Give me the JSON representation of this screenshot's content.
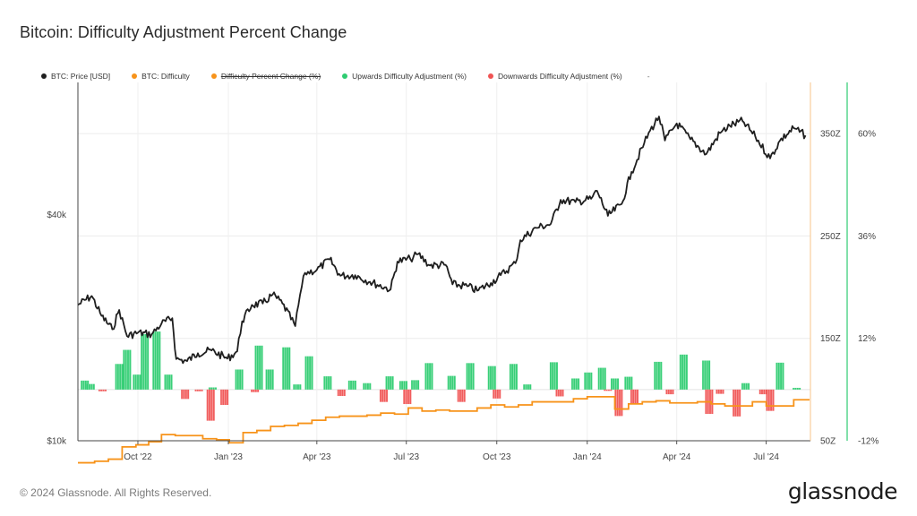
{
  "header": {
    "title": "Bitcoin: Difficulty Adjustment Percent Change"
  },
  "legend": {
    "items": [
      {
        "label": "BTC: Price [USD]",
        "color": "#1f1f1f",
        "struck": false
      },
      {
        "label": "BTC: Difficulty",
        "color": "#f7931a",
        "struck": false
      },
      {
        "label": "Difficulty Percent Change (%)",
        "color": "#f7931a",
        "struck": true
      },
      {
        "label": "Upwards Difficulty Adjustment (%)",
        "color": "#2ecc71",
        "struck": false
      },
      {
        "label": "Downwards Difficulty Adjustment (%)",
        "color": "#f05454",
        "struck": false
      }
    ],
    "extra": "-"
  },
  "footer": {
    "copyright": "© 2024 Glassnode. All Rights Reserved.",
    "brand": "glassnode"
  },
  "chart_data": {
    "type": "line",
    "x_ticks": [
      "Oct '22",
      "Jan '23",
      "Apr '23",
      "Jul '23",
      "Oct '23",
      "Jan '24",
      "Apr '24",
      "Jul '24"
    ],
    "x_tick_dates": [
      "2022-10-01",
      "2023-01-01",
      "2023-04-01",
      "2023-07-01",
      "2023-10-01",
      "2024-01-01",
      "2024-04-01",
      "2024-07-01"
    ],
    "x_range": [
      "2022-08-01",
      "2024-08-15"
    ],
    "axes": {
      "price": {
        "scale": "log",
        "ticks": [
          "$10k",
          "$40k"
        ],
        "tick_values": [
          10000,
          40000
        ],
        "range": [
          10000,
          90000
        ]
      },
      "difficulty": {
        "scale": "linear",
        "ticks": [
          "50Z",
          "150Z",
          "250Z",
          "350Z"
        ],
        "tick_values": [
          50,
          150,
          250,
          350
        ],
        "range": [
          50,
          400
        ]
      },
      "percent": {
        "scale": "linear",
        "ticks": [
          "-12%",
          "12%",
          "36%",
          "60%"
        ],
        "tick_values": [
          -12,
          12,
          36,
          60
        ],
        "range": [
          -12,
          72
        ]
      }
    },
    "series": [
      {
        "name": "BTC: Price [USD]",
        "color": "#1f1f1f",
        "axis": "price",
        "points": [
          [
            "2022-08-01",
            23000
          ],
          [
            "2022-08-15",
            24300
          ],
          [
            "2022-08-25",
            21500
          ],
          [
            "2022-09-05",
            19800
          ],
          [
            "2022-09-12",
            22300
          ],
          [
            "2022-09-20",
            19000
          ],
          [
            "2022-10-01",
            19400
          ],
          [
            "2022-10-15",
            19200
          ],
          [
            "2022-10-25",
            20500
          ],
          [
            "2022-11-05",
            21200
          ],
          [
            "2022-11-09",
            16500
          ],
          [
            "2022-11-20",
            16300
          ],
          [
            "2022-12-01",
            17100
          ],
          [
            "2022-12-15",
            17400
          ],
          [
            "2022-12-31",
            16550
          ],
          [
            "2023-01-10",
            17300
          ],
          [
            "2023-01-15",
            20800
          ],
          [
            "2023-01-25",
            23000
          ],
          [
            "2023-02-05",
            23200
          ],
          [
            "2023-02-15",
            24500
          ],
          [
            "2023-02-25",
            23200
          ],
          [
            "2023-03-10",
            20200
          ],
          [
            "2023-03-15",
            24500
          ],
          [
            "2023-03-20",
            28000
          ],
          [
            "2023-04-01",
            28500
          ],
          [
            "2023-04-14",
            30400
          ],
          [
            "2023-04-25",
            27500
          ],
          [
            "2023-05-10",
            27600
          ],
          [
            "2023-05-25",
            26500
          ],
          [
            "2023-06-15",
            25300
          ],
          [
            "2023-06-22",
            30000
          ],
          [
            "2023-07-05",
            30500
          ],
          [
            "2023-07-13",
            31400
          ],
          [
            "2023-07-25",
            29300
          ],
          [
            "2023-08-10",
            29400
          ],
          [
            "2023-08-17",
            26100
          ],
          [
            "2023-09-01",
            25800
          ],
          [
            "2023-09-11",
            25100
          ],
          [
            "2023-09-25",
            26300
          ],
          [
            "2023-10-05",
            27600
          ],
          [
            "2023-10-20",
            29700
          ],
          [
            "2023-10-25",
            34200
          ],
          [
            "2023-11-10",
            36900
          ],
          [
            "2023-11-25",
            37800
          ],
          [
            "2023-12-05",
            43800
          ],
          [
            "2023-12-20",
            43200
          ],
          [
            "2024-01-05",
            44100
          ],
          [
            "2024-01-11",
            46300
          ],
          [
            "2024-01-22",
            39700
          ],
          [
            "2024-02-05",
            42700
          ],
          [
            "2024-02-15",
            52000
          ],
          [
            "2024-02-28",
            62000
          ],
          [
            "2024-03-05",
            67000
          ],
          [
            "2024-03-14",
            73000
          ],
          [
            "2024-03-20",
            63000
          ],
          [
            "2024-04-01",
            70000
          ],
          [
            "2024-04-15",
            63500
          ],
          [
            "2024-05-01",
            58000
          ],
          [
            "2024-05-15",
            66000
          ],
          [
            "2024-05-25",
            69000
          ],
          [
            "2024-06-07",
            71000
          ],
          [
            "2024-06-20",
            64500
          ],
          [
            "2024-07-05",
            56500
          ],
          [
            "2024-07-15",
            63000
          ],
          [
            "2024-07-29",
            68000
          ],
          [
            "2024-08-10",
            65000
          ]
        ]
      },
      {
        "name": "BTC: Difficulty",
        "color": "#f7931a",
        "axis": "difficulty",
        "shape": "step",
        "points": [
          [
            "2022-08-01",
            28.5
          ],
          [
            "2022-08-18",
            30
          ],
          [
            "2022-09-01",
            32
          ],
          [
            "2022-09-15",
            44
          ],
          [
            "2022-09-29",
            46
          ],
          [
            "2022-10-12",
            49
          ],
          [
            "2022-10-25",
            56
          ],
          [
            "2022-11-08",
            55
          ],
          [
            "2022-11-22",
            55
          ],
          [
            "2022-12-06",
            52
          ],
          [
            "2022-12-20",
            51
          ],
          [
            "2023-01-02",
            48
          ],
          [
            "2023-01-16",
            58
          ],
          [
            "2023-01-30",
            60
          ],
          [
            "2023-02-13",
            64
          ],
          [
            "2023-02-27",
            65
          ],
          [
            "2023-03-13",
            67
          ],
          [
            "2023-03-27",
            70
          ],
          [
            "2023-04-10",
            73
          ],
          [
            "2023-04-24",
            74
          ],
          [
            "2023-05-08",
            74
          ],
          [
            "2023-05-22",
            75
          ],
          [
            "2023-06-05",
            77
          ],
          [
            "2023-06-19",
            76
          ],
          [
            "2023-07-03",
            82
          ],
          [
            "2023-07-17",
            79
          ],
          [
            "2023-07-31",
            80
          ],
          [
            "2023-08-14",
            79
          ],
          [
            "2023-08-28",
            79
          ],
          [
            "2023-09-11",
            82
          ],
          [
            "2023-09-25",
            85
          ],
          [
            "2023-10-09",
            83
          ],
          [
            "2023-10-23",
            85
          ],
          [
            "2023-11-06",
            88
          ],
          [
            "2023-11-20",
            88
          ],
          [
            "2023-12-04",
            88
          ],
          [
            "2023-12-18",
            91
          ],
          [
            "2024-01-01",
            93
          ],
          [
            "2024-01-15",
            93
          ],
          [
            "2024-01-29",
            81
          ],
          [
            "2024-02-12",
            86
          ],
          [
            "2024-02-26",
            88
          ],
          [
            "2024-03-11",
            89
          ],
          [
            "2024-03-25",
            87
          ],
          [
            "2024-04-08",
            87
          ],
          [
            "2024-04-22",
            88
          ],
          [
            "2024-05-06",
            86
          ],
          [
            "2024-05-20",
            84
          ],
          [
            "2024-06-03",
            84
          ],
          [
            "2024-06-17",
            88
          ],
          [
            "2024-07-01",
            84
          ],
          [
            "2024-07-15",
            84
          ],
          [
            "2024-07-29",
            90
          ]
        ]
      },
      {
        "name": "Upwards Difficulty Adjustment (%)",
        "color": "#2ecc71",
        "axis": "percent",
        "type": "bar",
        "points": [
          [
            "2022-08-08",
            2.1
          ],
          [
            "2022-08-14",
            1.3
          ],
          [
            "2022-09-12",
            6.0
          ],
          [
            "2022-09-20",
            9.3
          ],
          [
            "2022-09-30",
            3.5
          ],
          [
            "2022-10-08",
            13.0
          ],
          [
            "2022-10-20",
            13.6
          ],
          [
            "2022-11-01",
            3.5
          ],
          [
            "2022-12-16",
            0.5
          ],
          [
            "2023-01-12",
            4.7
          ],
          [
            "2023-02-01",
            10.3
          ],
          [
            "2023-02-12",
            4.7
          ],
          [
            "2023-03-01",
            9.9
          ],
          [
            "2023-03-12",
            1.2
          ],
          [
            "2023-03-24",
            7.8
          ],
          [
            "2023-04-12",
            3.1
          ],
          [
            "2023-05-07",
            2.1
          ],
          [
            "2023-05-22",
            1.5
          ],
          [
            "2023-06-14",
            3.1
          ],
          [
            "2023-06-28",
            2.0
          ],
          [
            "2023-07-10",
            2.2
          ],
          [
            "2023-07-24",
            6.2
          ],
          [
            "2023-08-16",
            3.2
          ],
          [
            "2023-09-04",
            6.2
          ],
          [
            "2023-09-26",
            5.5
          ],
          [
            "2023-10-18",
            6.0
          ],
          [
            "2023-11-01",
            1.2
          ],
          [
            "2023-11-28",
            6.4
          ],
          [
            "2023-12-20",
            2.6
          ],
          [
            "2024-01-02",
            4.0
          ],
          [
            "2024-01-16",
            5.1
          ],
          [
            "2024-01-29",
            2.6
          ],
          [
            "2024-02-12",
            3.0
          ],
          [
            "2024-03-13",
            6.5
          ],
          [
            "2024-04-08",
            8.2
          ],
          [
            "2024-05-01",
            6.8
          ],
          [
            "2024-06-10",
            1.5
          ],
          [
            "2024-07-15",
            6.3
          ],
          [
            "2024-08-01",
            0.4
          ]
        ]
      },
      {
        "name": "Downwards Difficulty Adjustment (%)",
        "color": "#f05454",
        "axis": "percent",
        "type": "bar",
        "points": [
          [
            "2022-08-26",
            -0.4
          ],
          [
            "2022-11-18",
            -2.2
          ],
          [
            "2022-12-02",
            -0.4
          ],
          [
            "2022-12-14",
            -7.3
          ],
          [
            "2022-12-28",
            -3.6
          ],
          [
            "2023-01-28",
            -0.6
          ],
          [
            "2023-04-26",
            -1.5
          ],
          [
            "2023-06-08",
            -2.9
          ],
          [
            "2023-07-02",
            -3.4
          ],
          [
            "2023-08-26",
            -2.9
          ],
          [
            "2023-10-01",
            -2.1
          ],
          [
            "2023-12-04",
            -1.6
          ],
          [
            "2024-01-22",
            -0.3
          ],
          [
            "2024-02-02",
            -6.2
          ],
          [
            "2024-02-18",
            -3.4
          ],
          [
            "2024-03-25",
            -1.1
          ],
          [
            "2024-05-04",
            -5.7
          ],
          [
            "2024-05-15",
            -1.0
          ],
          [
            "2024-06-01",
            -6.3
          ],
          [
            "2024-06-28",
            -1.1
          ],
          [
            "2024-07-05",
            -5.0
          ]
        ]
      }
    ],
    "grid": true,
    "legend_position": "top-left"
  }
}
